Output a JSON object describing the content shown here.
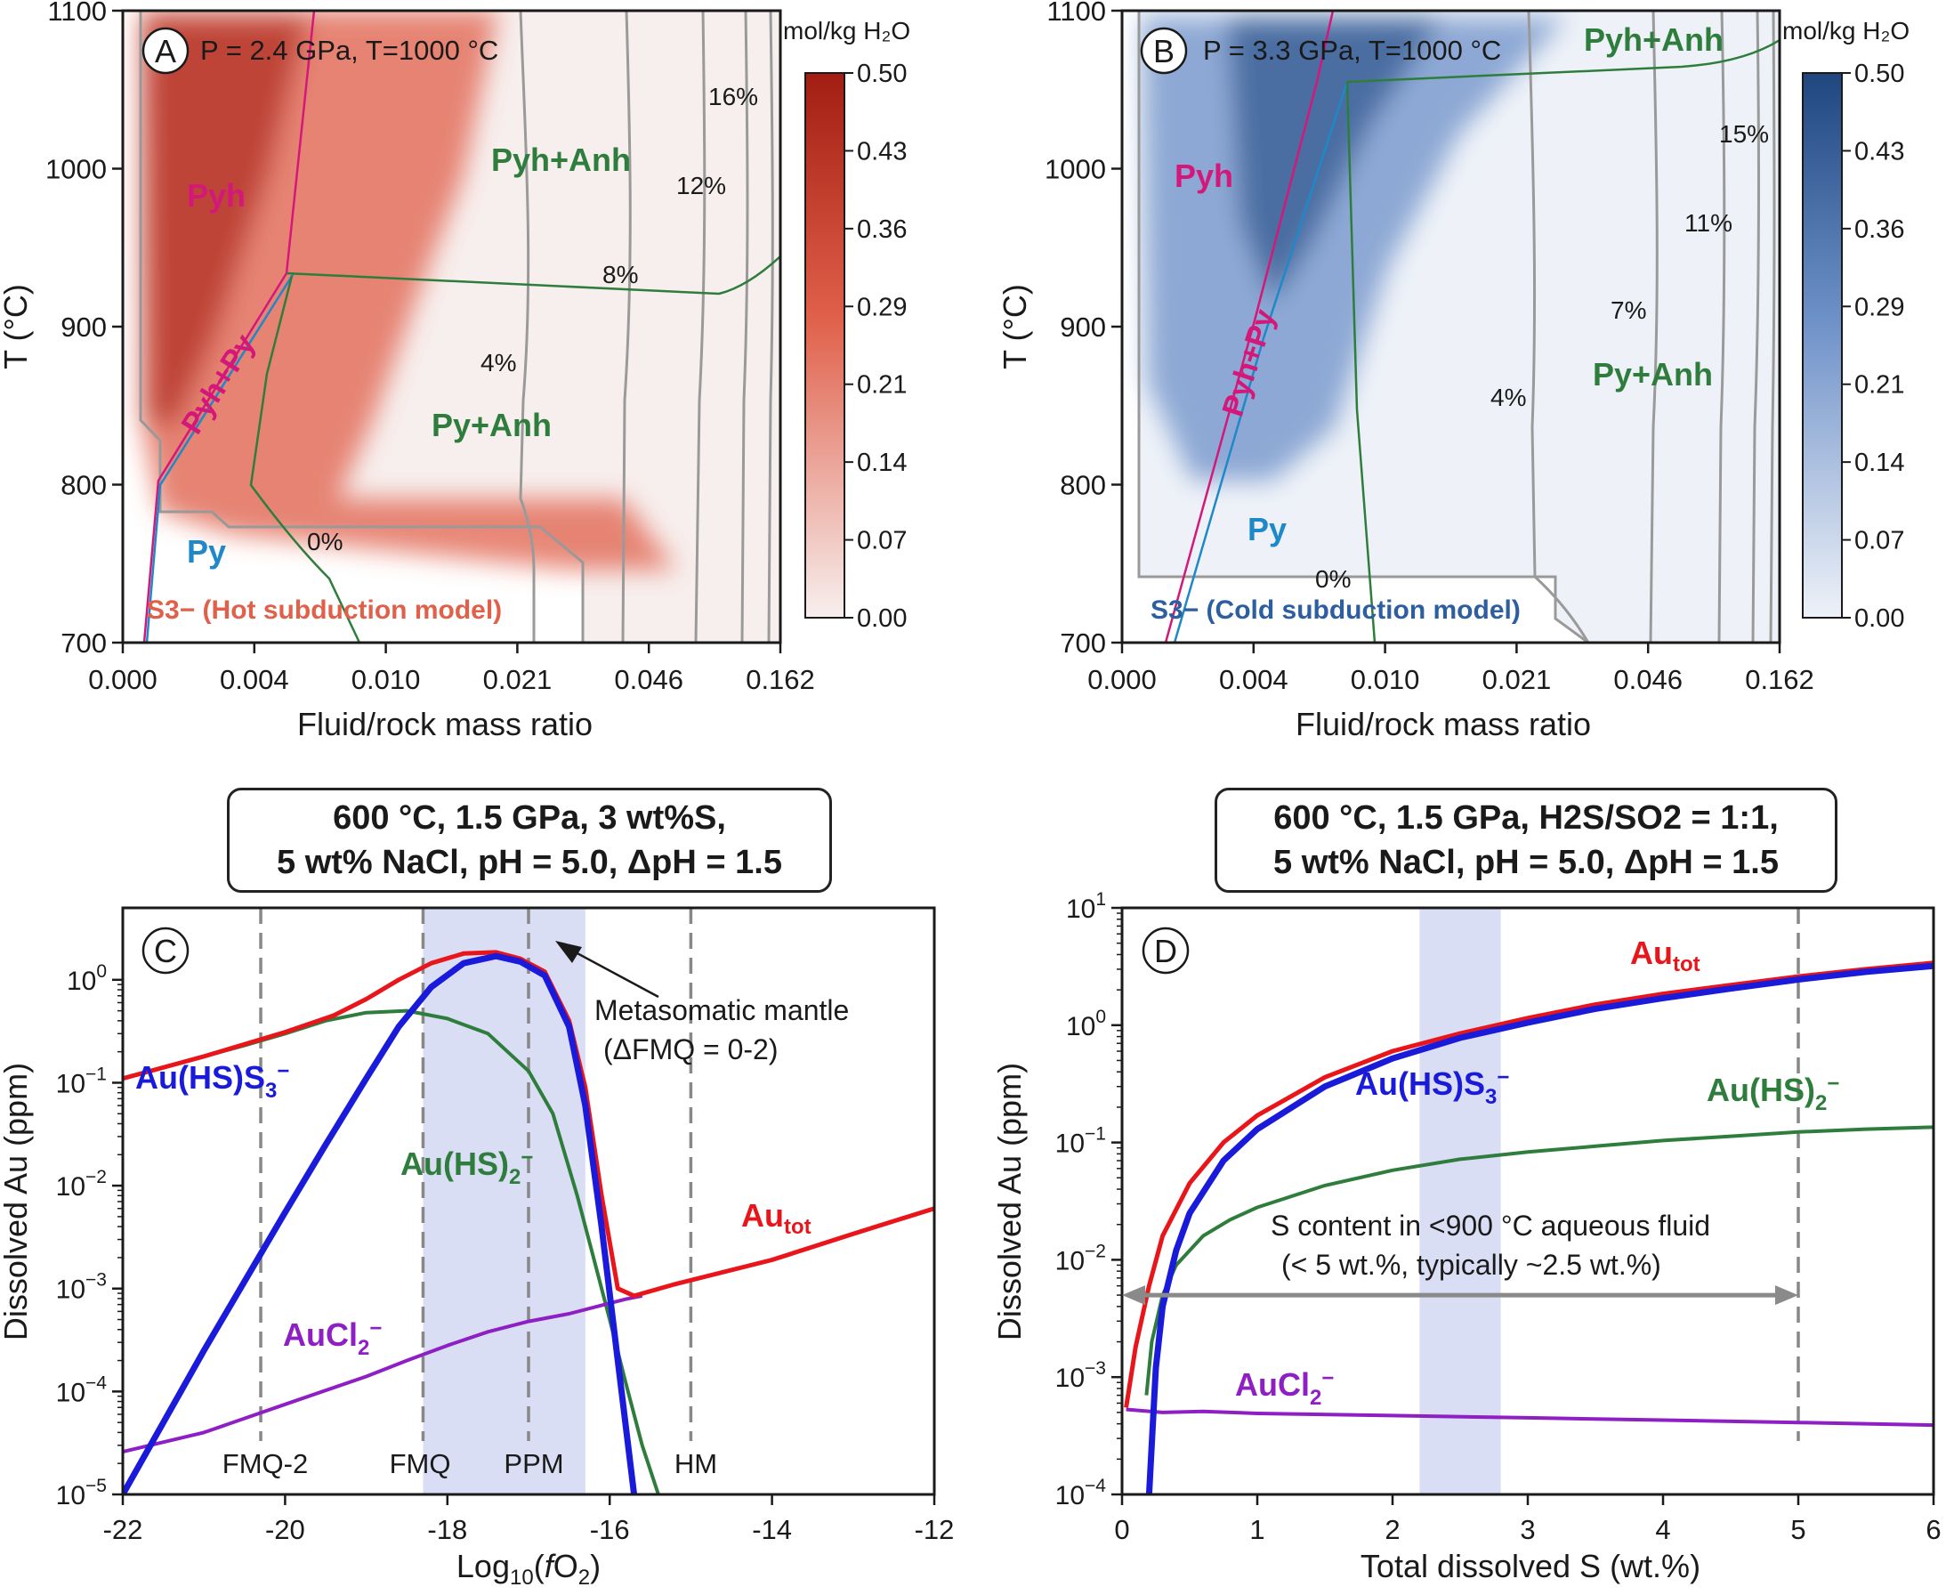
{
  "panels": {
    "A": {
      "letter": "A",
      "label": "P = 2.4 GPa, T=1000 °C",
      "model": "S3− (Hot subduction model)",
      "xlabel": "Fluid/rock mass ratio",
      "ylabel": "T (°C)",
      "xticks": [
        "0.000",
        "0.004",
        "0.010",
        "0.021",
        "0.046",
        "0.162"
      ],
      "yticks": [
        "700",
        "800",
        "900",
        "1000",
        "1100"
      ],
      "colorbar_title": "mol/kg H₂O",
      "colorbar_ticks": [
        "0.50",
        "0.43",
        "0.36",
        "0.29",
        "0.21",
        "0.14",
        "0.07",
        "0.00"
      ],
      "colors": [
        "#f7efee",
        "#e0604a",
        "#a31d12"
      ],
      "fields": [
        "Pyh",
        "Pyh+Py",
        "Pyh+Anh",
        "Py+Anh",
        "Py"
      ],
      "contours": [
        "0%",
        "4%",
        "8%",
        "12%",
        "16%"
      ]
    },
    "B": {
      "letter": "B",
      "label": "P = 3.3 GPa, T=1000 °C",
      "model": "S3− (Cold subduction model)",
      "xlabel": "Fluid/rock mass ratio",
      "ylabel": "T (°C)",
      "xticks": [
        "0.000",
        "0.004",
        "0.010",
        "0.021",
        "0.046",
        "0.162"
      ],
      "yticks": [
        "700",
        "800",
        "900",
        "1000",
        "1100"
      ],
      "colorbar_title": "mol/kg H₂O",
      "colorbar_ticks": [
        "0.50",
        "0.43",
        "0.36",
        "0.29",
        "0.21",
        "0.14",
        "0.07",
        "0.00"
      ],
      "colors": [
        "#eef2f8",
        "#6d90c8",
        "#20467f"
      ],
      "fields": [
        "Pyh",
        "Pyh+Py",
        "Pyh+Anh",
        "Py+Anh",
        "Py"
      ],
      "contours": [
        "0%",
        "4%",
        "7%",
        "11%",
        "15%"
      ]
    },
    "C": {
      "letter": "C",
      "condition_lines": [
        "600 °C, 1.5 GPa, 3 wt%S,",
        "5 wt% NaCl, pH = 5.0, ΔpH = 1.5"
      ],
      "xlabel": "Log10(fO2)",
      "ylabel": "Dissolved Au (ppm)",
      "xticks": [
        "-22",
        "-20",
        "-18",
        "-16",
        "-14",
        "-12"
      ],
      "buffers": [
        "FMQ-2",
        "FMQ",
        "PPM",
        "HM"
      ],
      "annotation_lines": [
        "Metasomatic mantle",
        "(ΔFMQ = 0-2)"
      ],
      "series_labels": [
        "Au(HS)S3−",
        "Au(HS)2−",
        "Autot",
        "AuCl2−"
      ]
    },
    "D": {
      "letter": "D",
      "condition_lines": [
        "600 °C, 1.5 GPa, H2S/SO2 = 1:1,",
        "5 wt% NaCl, pH = 5.0, ΔpH = 1.5"
      ],
      "xlabel": "Total dissolved S (wt.%)",
      "ylabel": "Dissolved Au (ppm)",
      "xticks": [
        "0",
        "1",
        "2",
        "3",
        "4",
        "5",
        "6"
      ],
      "annotation_lines": [
        "S content in <900 °C aqueous fluid",
        "(< 5 wt.%, typically ~2.5 wt.%)"
      ],
      "series_labels": [
        "Autot",
        "Au(HS)S3−",
        "Au(HS)2−",
        "AuCl2−"
      ]
    }
  },
  "chart_data": [
    {
      "type": "heatmap",
      "panel": "A",
      "x_category_ticks": [
        "0.000",
        "0.004",
        "0.010",
        "0.021",
        "0.046",
        "0.162"
      ],
      "ylim": [
        700,
        1100
      ],
      "zlim": [
        0,
        0.5
      ],
      "z_unit": "mol/kg H₂O",
      "fields": [
        "Pyh",
        "Pyh+Py",
        "Pyh+Anh",
        "Py+Anh",
        "Py"
      ],
      "contour_labels": [
        "0%",
        "4%",
        "8%",
        "12%",
        "16%"
      ]
    },
    {
      "type": "heatmap",
      "panel": "B",
      "x_category_ticks": [
        "0.000",
        "0.004",
        "0.010",
        "0.021",
        "0.046",
        "0.162"
      ],
      "ylim": [
        700,
        1100
      ],
      "zlim": [
        0,
        0.5
      ],
      "z_unit": "mol/kg H₂O",
      "fields": [
        "Pyh",
        "Pyh+Py",
        "Pyh+Anh",
        "Py+Anh",
        "Py"
      ],
      "contour_labels": [
        "0%",
        "4%",
        "7%",
        "11%",
        "15%"
      ]
    },
    {
      "type": "line",
      "panel": "C",
      "xlim": [
        -22,
        -12
      ],
      "ylim": [
        1e-05,
        5
      ],
      "yscale": "log",
      "vlines": [
        {
          "x": -20.3,
          "label": "FMQ-2"
        },
        {
          "x": -18.3,
          "label": "FMQ"
        },
        {
          "x": -17.0,
          "label": "PPM"
        },
        {
          "x": -15.0,
          "label": "HM"
        }
      ],
      "shaded_x": [
        -18.3,
        -16.3
      ],
      "series": [
        {
          "name": "Autot",
          "color": "#e8161b",
          "x": [
            -22,
            -21,
            -20,
            -19.4,
            -19,
            -18.6,
            -18.2,
            -17.8,
            -17.4,
            -17.1,
            -16.8,
            -16.5,
            -16.3,
            -16.1,
            -15.9,
            -15.7,
            -15.2,
            -14,
            -13,
            -12
          ],
          "y": [
            0.11,
            0.18,
            0.31,
            0.45,
            0.65,
            1.0,
            1.45,
            1.8,
            1.85,
            1.6,
            1.2,
            0.4,
            0.09,
            0.008,
            0.001,
            0.00085,
            0.0011,
            0.0019,
            0.0034,
            0.006
          ]
        },
        {
          "name": "Au(HS)S3−",
          "color": "#1a1adb",
          "x": [
            -22,
            -21,
            -20,
            -19.5,
            -19,
            -18.6,
            -18.2,
            -17.8,
            -17.4,
            -17.1,
            -16.8,
            -16.5,
            -16.3,
            -16.1,
            -15.9,
            -15.7
          ],
          "y": [
            1e-05,
            0.00025,
            0.0055,
            0.025,
            0.11,
            0.35,
            0.85,
            1.45,
            1.7,
            1.5,
            1.1,
            0.35,
            0.06,
            0.004,
            0.0002,
            1e-05
          ]
        },
        {
          "name": "Au(HS)2−",
          "color": "#2e7d3c",
          "x": [
            -22,
            -21,
            -20.5,
            -20,
            -19.5,
            -19,
            -18.5,
            -18,
            -17.5,
            -17,
            -16.7,
            -16.4,
            -16.2,
            -16,
            -15.8,
            -15.6,
            -15.4
          ],
          "y": [
            0.11,
            0.18,
            0.23,
            0.3,
            0.4,
            0.48,
            0.5,
            0.42,
            0.3,
            0.13,
            0.05,
            0.008,
            0.002,
            0.0005,
            0.00012,
            3e-05,
            1e-05
          ]
        },
        {
          "name": "AuCl2−",
          "color": "#8e1fc4",
          "x": [
            -22,
            -21,
            -20,
            -19,
            -18.5,
            -18,
            -17.5,
            -17,
            -16.5,
            -16,
            -15.8,
            -15.6
          ],
          "y": [
            2.6e-05,
            4e-05,
            7.5e-05,
            0.00014,
            0.0002,
            0.00028,
            0.00038,
            0.00048,
            0.00057,
            0.00072,
            0.00079,
            0.00085
          ]
        }
      ]
    },
    {
      "type": "line",
      "panel": "D",
      "xlim": [
        0,
        6
      ],
      "ylim": [
        0.0001,
        10
      ],
      "yscale": "log",
      "vlines": [
        {
          "x": 5.0,
          "label": ""
        }
      ],
      "shaded_x": [
        2.2,
        2.8
      ],
      "arrow": {
        "x": [
          0,
          5
        ],
        "y": 0.005
      },
      "series": [
        {
          "name": "Autot",
          "color": "#e8161b",
          "x": [
            0.03,
            0.1,
            0.2,
            0.3,
            0.5,
            0.75,
            1.0,
            1.5,
            2.0,
            2.5,
            3.0,
            3.5,
            4.0,
            4.5,
            5.0,
            5.5,
            6.0
          ],
          "y": [
            0.00055,
            0.0018,
            0.006,
            0.016,
            0.045,
            0.1,
            0.17,
            0.36,
            0.6,
            0.85,
            1.15,
            1.5,
            1.85,
            2.2,
            2.6,
            3.0,
            3.4
          ]
        },
        {
          "name": "Au(HS)S3−",
          "color": "#1a1adb",
          "x": [
            0.2,
            0.25,
            0.3,
            0.4,
            0.5,
            0.75,
            1.0,
            1.5,
            2.0,
            2.5,
            3.0,
            3.5,
            4.0,
            4.5,
            5.0,
            5.5,
            6.0
          ],
          "y": [
            0.0001,
            0.0012,
            0.004,
            0.012,
            0.025,
            0.07,
            0.13,
            0.3,
            0.52,
            0.78,
            1.05,
            1.38,
            1.7,
            2.05,
            2.45,
            2.85,
            3.2
          ]
        },
        {
          "name": "Au(HS)2−",
          "color": "#2e7d3c",
          "x": [
            0.18,
            0.22,
            0.3,
            0.4,
            0.6,
            0.8,
            1.0,
            1.5,
            2.0,
            2.5,
            3.0,
            3.5,
            4.0,
            4.5,
            5.0,
            5.5,
            6.0
          ],
          "y": [
            0.0007,
            0.002,
            0.005,
            0.009,
            0.016,
            0.022,
            0.028,
            0.043,
            0.058,
            0.072,
            0.083,
            0.093,
            0.104,
            0.113,
            0.123,
            0.13,
            0.135
          ]
        },
        {
          "name": "AuCl2−",
          "color": "#8e1fc4",
          "x": [
            0.03,
            0.3,
            0.6,
            1.0,
            2.0,
            3.0,
            4.0,
            5.0,
            6.0
          ],
          "y": [
            0.00053,
            0.0005,
            0.00051,
            0.00049,
            0.00047,
            0.00045,
            0.00043,
            0.00041,
            0.00039
          ]
        }
      ]
    }
  ]
}
